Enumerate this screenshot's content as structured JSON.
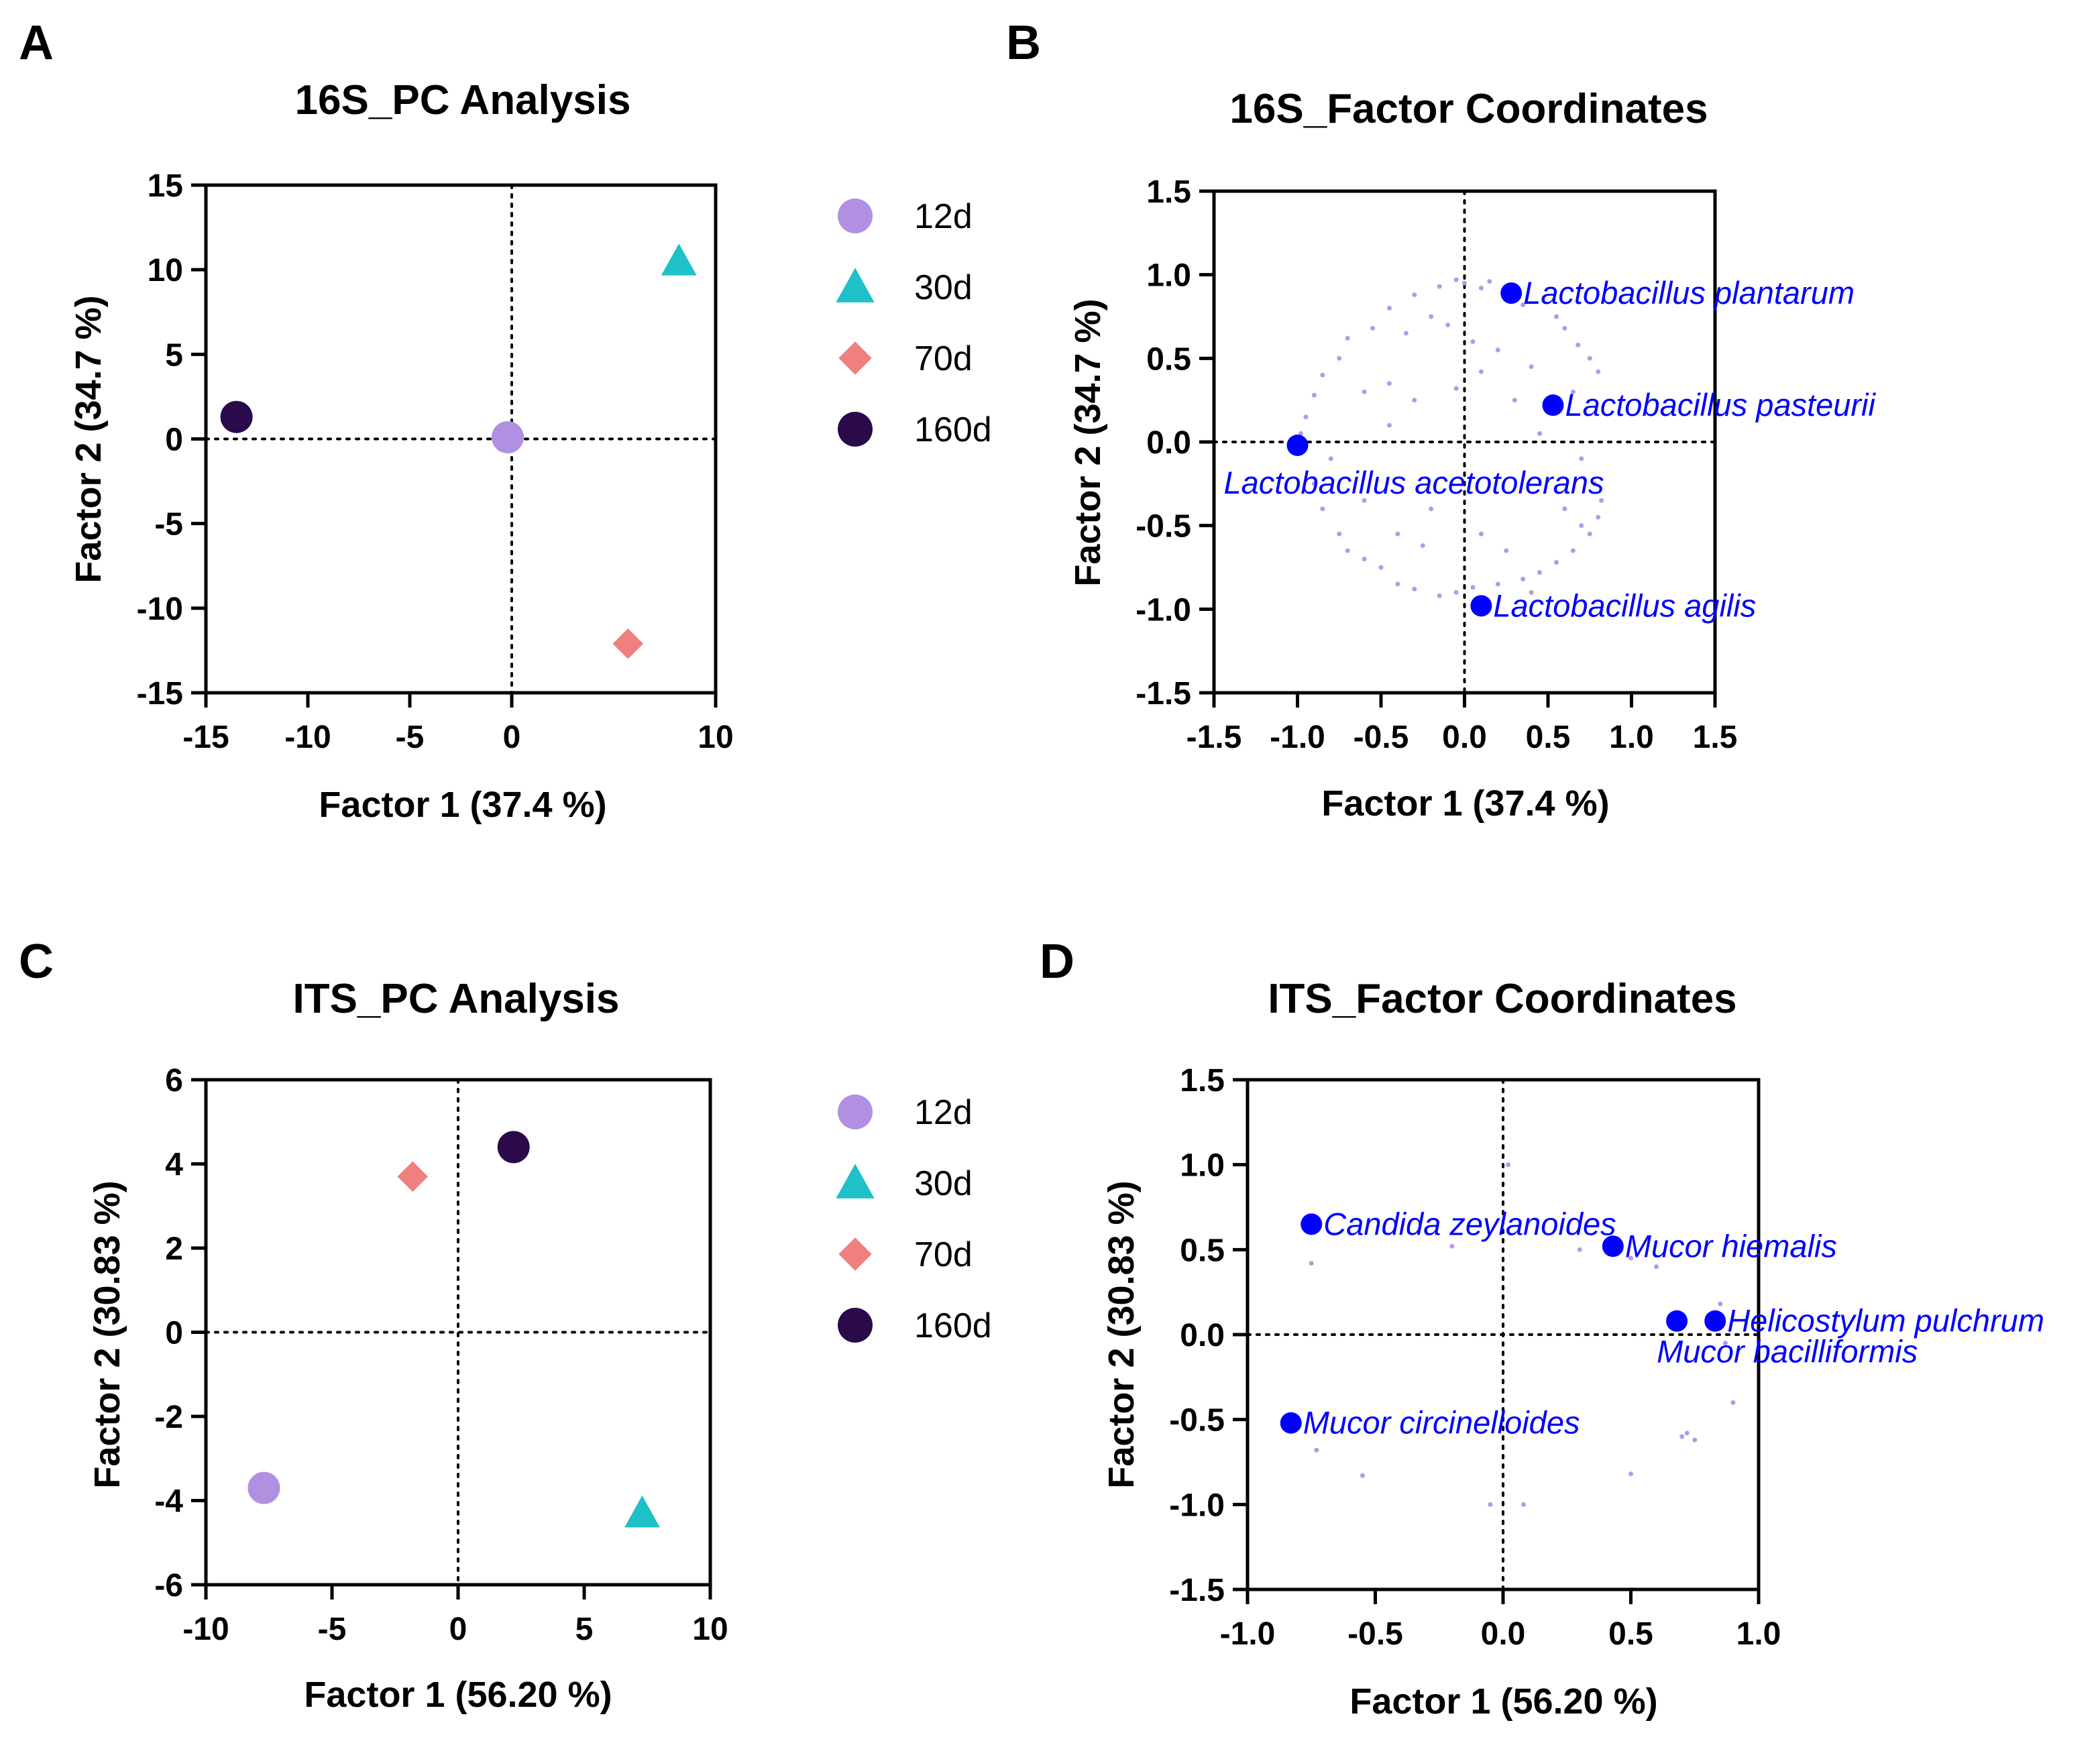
{
  "chart_data": [
    {
      "panel": "A",
      "type": "scatter",
      "title": "16S_PC Analysis",
      "xlabel": "Factor 1 (37.4 %)",
      "ylabel": "Factor 2 (34.7 %)",
      "xlim": [
        -15,
        10
      ],
      "ylim": [
        -15,
        15
      ],
      "xticks": [
        -15,
        -10,
        -5,
        0,
        10
      ],
      "xtick_labels": [
        "-15",
        "-10",
        "-5",
        "0",
        "10"
      ],
      "yticks": [
        15,
        10,
        5,
        0,
        -5,
        -10,
        -15
      ],
      "ytick_labels": [
        "15",
        "10",
        "5",
        "0",
        "-5",
        "-10",
        "-15"
      ],
      "legend": [
        {
          "label": "12d",
          "marker": "circle",
          "color": "#b090e0"
        },
        {
          "label": "30d",
          "marker": "triangle",
          "color": "#20c0c8"
        },
        {
          "label": "70d",
          "marker": "diamond",
          "color": "#f08080"
        },
        {
          "label": "160d",
          "marker": "circle",
          "color": "#2a0a4a"
        }
      ],
      "points": [
        {
          "group": "12d",
          "x": -0.2,
          "y": 0.1
        },
        {
          "group": "30d",
          "x": 8.2,
          "y": 10.5
        },
        {
          "group": "70d",
          "x": 5.7,
          "y": -12.1
        },
        {
          "group": "160d",
          "x": -13.5,
          "y": 1.3
        }
      ]
    },
    {
      "panel": "B",
      "type": "scatter",
      "title": "16S_Factor Coordinates",
      "xlabel": "Factor 1 (37.4 %)",
      "ylabel": "Factor 2 (34.7 %)",
      "xlim": [
        -1.5,
        1.5
      ],
      "ylim": [
        -1.5,
        1.5
      ],
      "xticks": [
        -1.5,
        -1.0,
        -0.5,
        0.0,
        0.5,
        1.0,
        1.5
      ],
      "xtick_labels": [
        "-1.5",
        "-1.0",
        "-0.5",
        "0.0",
        "0.5",
        "1.0",
        "1.5"
      ],
      "yticks": [
        1.5,
        1.0,
        0.5,
        0.0,
        -0.5,
        -1.0,
        -1.5
      ],
      "ytick_labels": [
        "1.5",
        "1.0",
        "0.5",
        "0.0",
        "-0.5",
        "-1.0",
        "-1.5"
      ],
      "labeled_points": [
        {
          "label": "Lactobacillus plantarum",
          "x": 0.28,
          "y": 0.89
        },
        {
          "label": "Lactobacillus pasteurii",
          "x": 0.53,
          "y": 0.22
        },
        {
          "label": "Lactobacillus acetotolerans",
          "x": -1.0,
          "y": -0.02
        },
        {
          "label": "Lactobacillus agilis",
          "x": 0.1,
          "y": -0.98
        }
      ],
      "minor_points": [
        [
          -0.05,
          0.97
        ],
        [
          0.0,
          0.95
        ],
        [
          -0.15,
          0.93
        ],
        [
          0.15,
          0.96
        ],
        [
          0.1,
          0.92
        ],
        [
          -0.3,
          0.88
        ],
        [
          -0.45,
          0.8
        ],
        [
          -0.55,
          0.68
        ],
        [
          -0.7,
          0.62
        ],
        [
          -0.75,
          0.5
        ],
        [
          -0.85,
          0.4
        ],
        [
          -0.9,
          0.28
        ],
        [
          -0.95,
          0.15
        ],
        [
          -0.98,
          0.05
        ],
        [
          -0.2,
          0.75
        ],
        [
          -0.35,
          0.65
        ],
        [
          -0.1,
          0.7
        ],
        [
          0.05,
          0.6
        ],
        [
          -0.6,
          0.3
        ],
        [
          -0.45,
          0.35
        ],
        [
          -0.3,
          0.25
        ],
        [
          0.35,
          0.82
        ],
        [
          0.55,
          0.75
        ],
        [
          0.6,
          0.68
        ],
        [
          0.68,
          0.58
        ],
        [
          0.75,
          0.5
        ],
        [
          0.8,
          0.42
        ],
        [
          0.65,
          0.3
        ],
        [
          0.4,
          0.45
        ],
        [
          0.2,
          0.55
        ],
        [
          0.3,
          0.25
        ],
        [
          -0.05,
          0.32
        ],
        [
          0.1,
          0.42
        ],
        [
          -0.8,
          -0.1
        ],
        [
          -0.9,
          -0.25
        ],
        [
          -0.85,
          -0.4
        ],
        [
          -0.75,
          -0.55
        ],
        [
          -0.7,
          -0.65
        ],
        [
          -0.6,
          -0.7
        ],
        [
          -0.5,
          -0.75
        ],
        [
          -0.4,
          -0.85
        ],
        [
          -0.3,
          -0.88
        ],
        [
          -0.15,
          -0.92
        ],
        [
          -0.05,
          -0.9
        ],
        [
          0.05,
          -0.87
        ],
        [
          0.2,
          -0.85
        ],
        [
          0.35,
          -0.82
        ],
        [
          0.45,
          -0.78
        ],
        [
          0.55,
          -0.72
        ],
        [
          0.65,
          -0.65
        ],
        [
          0.75,
          -0.55
        ],
        [
          0.8,
          -0.45
        ],
        [
          0.82,
          -0.35
        ],
        [
          0.78,
          -0.25
        ],
        [
          0.7,
          -0.5
        ],
        [
          0.6,
          -0.4
        ],
        [
          -0.6,
          -0.35
        ],
        [
          -0.4,
          -0.55
        ],
        [
          -0.2,
          -0.4
        ],
        [
          0.1,
          -0.55
        ],
        [
          0.25,
          -0.65
        ],
        [
          -0.25,
          -0.62
        ],
        [
          0.4,
          -0.9
        ],
        [
          -0.45,
          0.1
        ],
        [
          0.45,
          0.05
        ],
        [
          0.7,
          -0.1
        ]
      ]
    },
    {
      "panel": "C",
      "type": "scatter",
      "title": "ITS_PC Analysis",
      "xlabel": "Factor 1 (56.20 %)",
      "ylabel": "Factor 2 (30.83 %)",
      "xlim": [
        -10,
        10
      ],
      "ylim": [
        -6,
        6
      ],
      "xticks": [
        -10,
        -5,
        0,
        5,
        10
      ],
      "xtick_labels": [
        "-10",
        "-5",
        "0",
        "5",
        "10"
      ],
      "yticks": [
        6,
        4,
        2,
        0,
        -2,
        -4,
        -6
      ],
      "ytick_labels": [
        "6",
        "4",
        "2",
        "0",
        "-2",
        "-4",
        "-6"
      ],
      "legend": [
        {
          "label": "12d",
          "marker": "circle",
          "color": "#b090e0"
        },
        {
          "label": "30d",
          "marker": "triangle",
          "color": "#20c0c8"
        },
        {
          "label": "70d",
          "marker": "diamond",
          "color": "#f08080"
        },
        {
          "label": "160d",
          "marker": "circle",
          "color": "#2a0a4a"
        }
      ],
      "points": [
        {
          "group": "12d",
          "x": -7.7,
          "y": -3.7
        },
        {
          "group": "30d",
          "x": 7.3,
          "y": -4.3
        },
        {
          "group": "70d",
          "x": -1.8,
          "y": 3.7
        },
        {
          "group": "160d",
          "x": 2.2,
          "y": 4.4
        }
      ]
    },
    {
      "panel": "D",
      "type": "scatter",
      "title": "ITS_Factor Coordinates",
      "xlabel": "Factor 1 (56.20 %)",
      "ylabel": "Factor 2 (30.83 %)",
      "xlim": [
        -1.0,
        1.0
      ],
      "ylim": [
        -1.5,
        1.5
      ],
      "xticks": [
        -1.0,
        -0.5,
        0.0,
        0.5,
        1.0
      ],
      "xtick_labels": [
        "-1.0",
        "-0.5",
        "0.0",
        "0.5",
        "1.0"
      ],
      "yticks": [
        1.5,
        1.0,
        0.5,
        0.0,
        -0.5,
        -1.0,
        -1.5
      ],
      "ytick_labels": [
        "1.5",
        "1.0",
        "0.5",
        "0.0",
        "-0.5",
        "-1.0",
        "-1.5"
      ],
      "labeled_points": [
        {
          "label": "Candida zeylanoides",
          "x": -0.75,
          "y": 0.65
        },
        {
          "label": "Mucor hiemalis",
          "x": 0.43,
          "y": 0.52
        },
        {
          "label": "Helicostylum pulchrum",
          "x": 0.83,
          "y": 0.08
        },
        {
          "label": "Mucor bacilliformis",
          "x": 0.68,
          "y": 0.08
        },
        {
          "label": "Mucor circinelloides",
          "x": -0.83,
          "y": -0.52
        }
      ],
      "minor_points": [
        [
          0.02,
          1.0
        ],
        [
          -0.75,
          0.42
        ],
        [
          -0.2,
          0.52
        ],
        [
          0.5,
          0.45
        ],
        [
          0.6,
          0.4
        ],
        [
          0.85,
          0.18
        ],
        [
          0.8,
          0.1
        ],
        [
          0.87,
          -0.05
        ],
        [
          0.9,
          -0.4
        ],
        [
          0.75,
          -0.62
        ],
        [
          0.7,
          -0.6
        ],
        [
          0.72,
          -0.58
        ],
        [
          0.5,
          -0.82
        ],
        [
          -0.73,
          -0.68
        ],
        [
          -0.55,
          -0.83
        ],
        [
          -0.05,
          -1.0
        ],
        [
          0.08,
          -1.0
        ],
        [
          0.3,
          0.5
        ]
      ]
    }
  ]
}
